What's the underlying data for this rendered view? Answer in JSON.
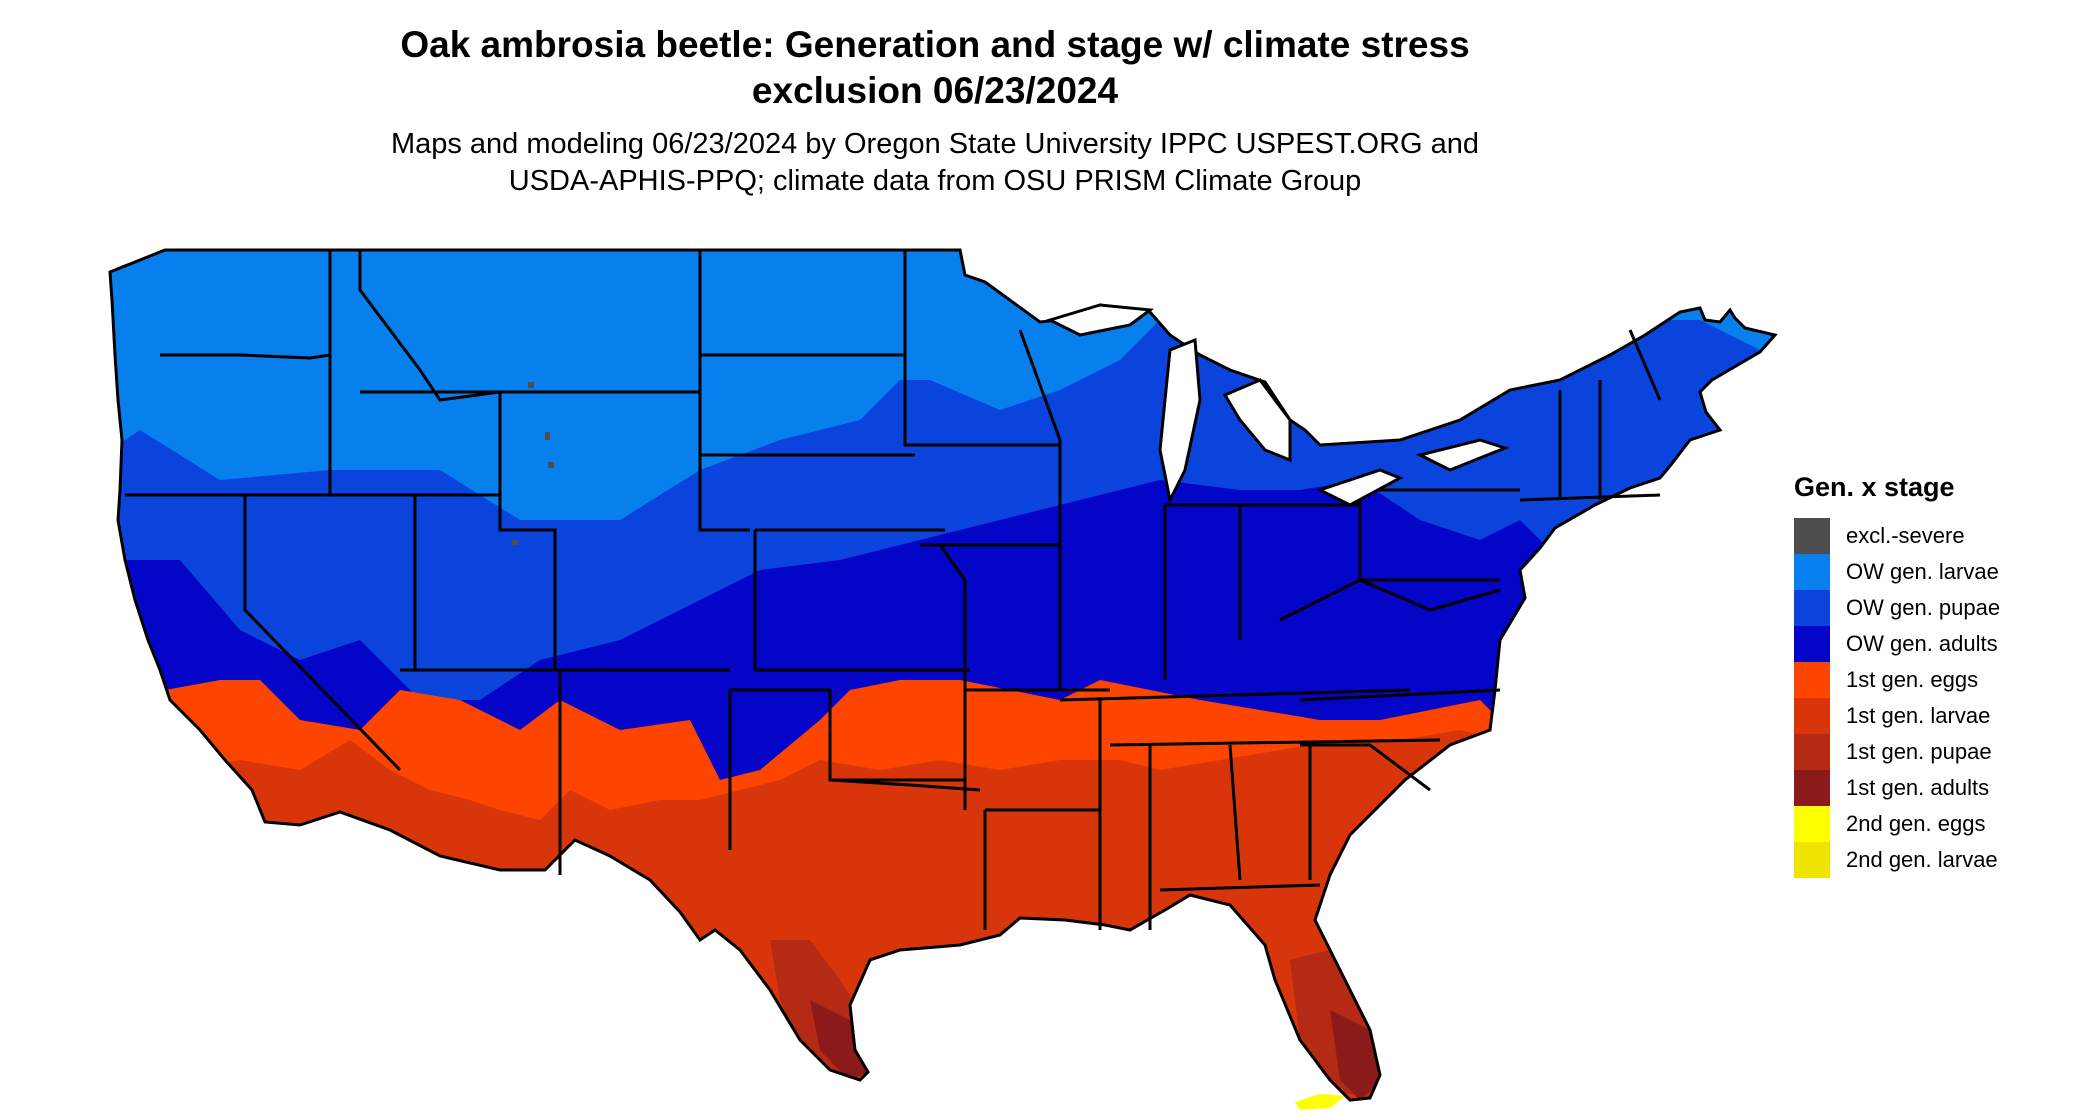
{
  "title_line1": "Oak ambrosia beetle: Generation and stage w/ climate stress",
  "title_line2": "exclusion 06/23/2024",
  "subtitle_line1": "Maps and modeling 06/23/2024 by Oregon State University IPPC USPEST.ORG and",
  "subtitle_line2": "USDA-APHIS-PPQ; climate data from OSU PRISM Climate Group",
  "legend": {
    "title": "Gen. x stage",
    "items": [
      {
        "label": "excl.-severe",
        "color": "#4d4d4d"
      },
      {
        "label": "OW gen. larvae",
        "color": "#0780ee"
      },
      {
        "label": "OW gen. pupae",
        "color": "#0a44dd"
      },
      {
        "label": "OW gen. adults",
        "color": "#0505c8"
      },
      {
        "label": "1st gen. eggs",
        "color": "#fe4500"
      },
      {
        "label": "1st gen. larvae",
        "color": "#d8360a"
      },
      {
        "label": "1st gen. pupae",
        "color": "#b42a14"
      },
      {
        "label": "1st gen. adults",
        "color": "#8b1a1a"
      },
      {
        "label": "2nd gen. eggs",
        "color": "#ffff00"
      },
      {
        "label": "2nd gen. larvae",
        "color": "#eee400"
      }
    ]
  }
}
